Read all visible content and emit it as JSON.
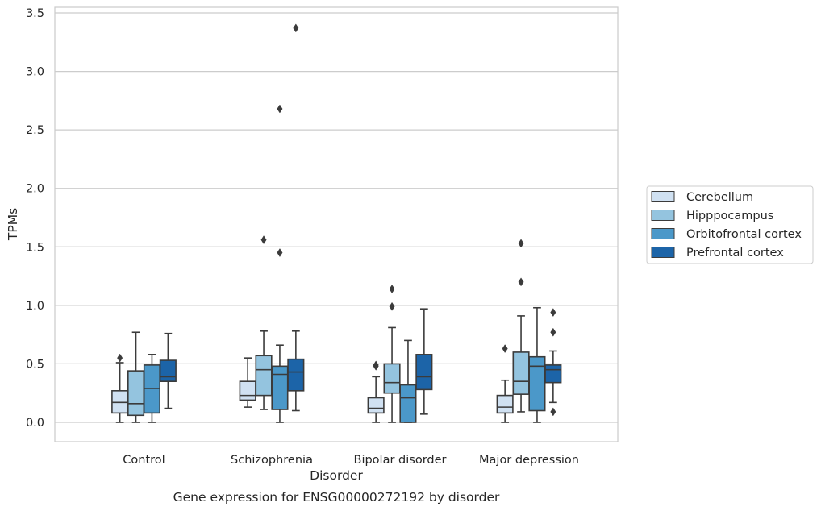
{
  "chart_data": {
    "type": "box",
    "title": "",
    "caption": "Gene expression for ENSG00000272192 by disorder",
    "xlabel": "Disorder",
    "ylabel": "TPMs",
    "ylim": [
      -0.16,
      3.56
    ],
    "yticks": [
      0.0,
      0.5,
      1.0,
      1.5,
      2.0,
      2.5,
      3.0,
      3.5
    ],
    "ytick_labels": [
      "0.0",
      "0.5",
      "1.0",
      "1.5",
      "2.0",
      "2.5",
      "3.0",
      "3.5"
    ],
    "categories": [
      "Control",
      "Schizophrenia",
      "Bipolar disorder",
      "Major depression"
    ],
    "grid": "horizontal",
    "legend_position": "right",
    "series": [
      {
        "name": "Cerebellum",
        "color": "#d0e1f2",
        "boxes": [
          {
            "whislo": 0.0,
            "q1": 0.08,
            "med": 0.17,
            "q3": 0.27,
            "whishi": 0.51,
            "fliers": [
              0.55
            ]
          },
          {
            "whislo": 0.13,
            "q1": 0.19,
            "med": 0.23,
            "q3": 0.35,
            "whishi": 0.55,
            "fliers": []
          },
          {
            "whislo": 0.0,
            "q1": 0.08,
            "med": 0.12,
            "q3": 0.21,
            "whishi": 0.39,
            "fliers": [
              0.48,
              0.49
            ]
          },
          {
            "whislo": 0.0,
            "q1": 0.08,
            "med": 0.13,
            "q3": 0.23,
            "whishi": 0.36,
            "fliers": [
              0.63
            ]
          }
        ]
      },
      {
        "name": "Hipppocampus",
        "color": "#94c4df",
        "boxes": [
          {
            "whislo": 0.0,
            "q1": 0.06,
            "med": 0.16,
            "q3": 0.44,
            "whishi": 0.77,
            "fliers": []
          },
          {
            "whislo": 0.11,
            "q1": 0.23,
            "med": 0.45,
            "q3": 0.57,
            "whishi": 0.78,
            "fliers": [
              1.56
            ]
          },
          {
            "whislo": 0.0,
            "q1": 0.25,
            "med": 0.34,
            "q3": 0.5,
            "whishi": 0.81,
            "fliers": [
              0.99,
              1.14
            ]
          },
          {
            "whislo": 0.09,
            "q1": 0.24,
            "med": 0.35,
            "q3": 0.6,
            "whishi": 0.91,
            "fliers": [
              1.2,
              1.53
            ]
          }
        ]
      },
      {
        "name": "Orbitofrontal cortex",
        "color": "#4b98c9",
        "boxes": [
          {
            "whislo": 0.0,
            "q1": 0.08,
            "med": 0.29,
            "q3": 0.49,
            "whishi": 0.58,
            "fliers": []
          },
          {
            "whislo": 0.0,
            "q1": 0.11,
            "med": 0.41,
            "q3": 0.48,
            "whishi": 0.66,
            "fliers": [
              1.45,
              2.68
            ]
          },
          {
            "whislo": 0.0,
            "q1": 0.0,
            "med": 0.21,
            "q3": 0.32,
            "whishi": 0.7,
            "fliers": []
          },
          {
            "whislo": 0.0,
            "q1": 0.1,
            "med": 0.48,
            "q3": 0.56,
            "whishi": 0.98,
            "fliers": []
          }
        ]
      },
      {
        "name": "Prefrontal cortex",
        "color": "#1c64a8",
        "boxes": [
          {
            "whislo": 0.12,
            "q1": 0.35,
            "med": 0.39,
            "q3": 0.53,
            "whishi": 0.76,
            "fliers": []
          },
          {
            "whislo": 0.1,
            "q1": 0.27,
            "med": 0.43,
            "q3": 0.54,
            "whishi": 0.78,
            "fliers": [
              3.37
            ]
          },
          {
            "whislo": 0.07,
            "q1": 0.28,
            "med": 0.39,
            "q3": 0.58,
            "whishi": 0.97,
            "fliers": []
          },
          {
            "whislo": 0.17,
            "q1": 0.34,
            "med": 0.45,
            "q3": 0.49,
            "whishi": 0.61,
            "fliers": [
              0.09,
              0.77,
              0.94
            ]
          }
        ]
      }
    ]
  }
}
